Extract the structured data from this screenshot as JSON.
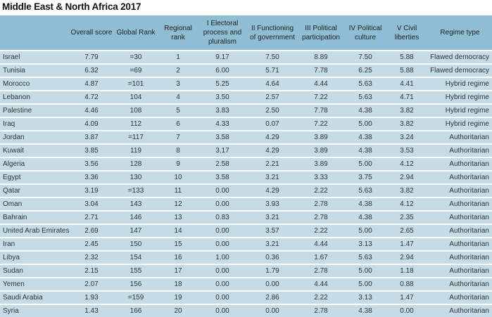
{
  "title": "Middle East & North Africa 2017",
  "columns": [
    "",
    "Overall score",
    "Global Rank",
    "Regional rank",
    "I Electoral process and pluralism",
    "II Functioning of government",
    "III Political participation",
    "IV Political culture",
    "V Civil liberties",
    "Regime type"
  ],
  "colors": {
    "header_bg": "#8fbdd3",
    "row_bg": "#c5dce7"
  },
  "rows": [
    [
      "Israel",
      "7.79",
      "=30",
      "1",
      "9.17",
      "7.50",
      "8.89",
      "7.50",
      "5.88",
      "Flawed democracy"
    ],
    [
      "Tunisia",
      "6.32",
      "=69",
      "2",
      "6.00",
      "5.71",
      "7.78",
      "6.25",
      "5.88",
      "Flawed democracy"
    ],
    [
      "Morocco",
      "4.87",
      "=101",
      "3",
      "5.25",
      "4.64",
      "4.44",
      "5.63",
      "4.41",
      "Hybrid regime"
    ],
    [
      "Lebanon",
      "4.72",
      "104",
      "4",
      "3.50",
      "2.57",
      "7.22",
      "5.63",
      "4.71",
      "Hybrid regime"
    ],
    [
      "Palestine",
      "4.46",
      "108",
      "5",
      "3.83",
      "2.50",
      "7.78",
      "4.38",
      "3.82",
      "Hybrid regime"
    ],
    [
      "Iraq",
      "4.09",
      "112",
      "6",
      "4.33",
      "0.07",
      "7.22",
      "5.00",
      "3.82",
      "Hybrid regime"
    ],
    [
      "Jordan",
      "3.87",
      "=117",
      "7",
      "3.58",
      "4.29",
      "3.89",
      "4.38",
      "3.24",
      "Authoritarian"
    ],
    [
      "Kuwait",
      "3.85",
      "119",
      "8",
      "3.17",
      "4.29",
      "3.89",
      "4.38",
      "3.53",
      "Authoritarian"
    ],
    [
      "Algeria",
      "3.56",
      "128",
      "9",
      "2.58",
      "2.21",
      "3.89",
      "5.00",
      "4.12",
      "Authoritarian"
    ],
    [
      "Egypt",
      "3.36",
      "130",
      "10",
      "3.58",
      "3.21",
      "3.33",
      "3.75",
      "2.94",
      "Authoritarian"
    ],
    [
      "Qatar",
      "3.19",
      "=133",
      "11",
      "0.00",
      "4.29",
      "2.22",
      "5.63",
      "3.82",
      "Authoritarian"
    ],
    [
      "Oman",
      "3.04",
      "143",
      "12",
      "0.00",
      "3.93",
      "2.78",
      "4.38",
      "4.12",
      "Authoritarian"
    ],
    [
      "Bahrain",
      "2.71",
      "146",
      "13",
      "0.83",
      "3.21",
      "2.78",
      "4.38",
      "2.35",
      "Authoritarian"
    ],
    [
      "United Arab Emirates",
      "2.69",
      "147",
      "14",
      "0.00",
      "3.57",
      "2.22",
      "5.00",
      "2.65",
      "Authoritarian"
    ],
    [
      "Iran",
      "2.45",
      "150",
      "15",
      "0.00",
      "3.21",
      "4.44",
      "3.13",
      "1.47",
      "Authoritarian"
    ],
    [
      "Libya",
      "2.32",
      "154",
      "16",
      "1.00",
      "0.36",
      "1.67",
      "5.63",
      "2.94",
      "Authoritarian"
    ],
    [
      "Sudan",
      "2.15",
      "155",
      "17",
      "0.00",
      "1.79",
      "2.78",
      "5.00",
      "1.18",
      "Authoritarian"
    ],
    [
      "Yemen",
      "2.07",
      "156",
      "18",
      "0.00",
      "0.00",
      "4.44",
      "5.00",
      "0.88",
      "Authoritarian"
    ],
    [
      "Saudi Arabia",
      "1.93",
      "=159",
      "19",
      "0.00",
      "2.86",
      "2.22",
      "3.13",
      "1.47",
      "Authoritarian"
    ],
    [
      "Syria",
      "1.43",
      "166",
      "20",
      "0.00",
      "0.00",
      "2.78",
      "4.38",
      "0.00",
      "Authoritarian"
    ]
  ]
}
